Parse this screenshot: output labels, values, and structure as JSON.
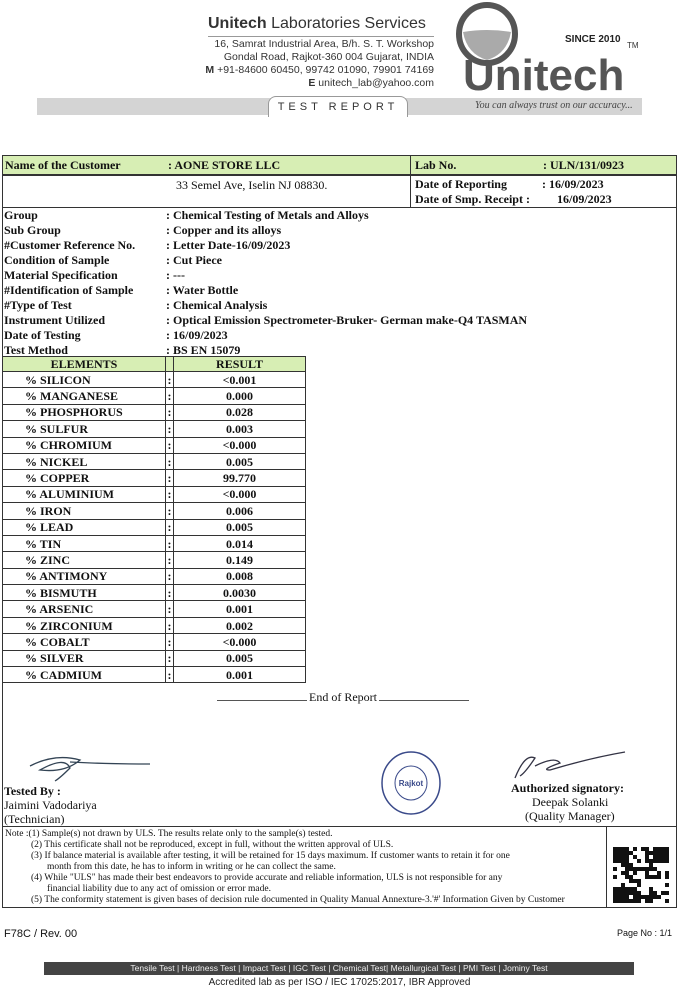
{
  "letterhead": {
    "company_bold": "Unitech",
    "company_rest": "Laboratories Services",
    "address1": "16, Samrat Industrial Area, B/h. S. T. Workshop",
    "address2": "Gondal Road, Rajkot-360 004 Gujarat, INDIA",
    "mobile_label": "M",
    "mobile": "+91-84600 60450, 99742 01090, 79901 74169",
    "email_label": "E",
    "email": "unitech_lab@yahoo.com",
    "logo_text": "Unitech",
    "since": "SINCE 2010",
    "tm": "TM",
    "tagline": "You can always trust on our accuracy...",
    "report_title": "TEST REPORT"
  },
  "customer": {
    "label": "Name of the Customer",
    "name": ": AONE STORE LLC",
    "address": "33 Semel Ave, Iselin NJ 08830."
  },
  "lab": {
    "lab_no_label": "Lab No.",
    "lab_no": ": ULN/131/0923",
    "reporting_label": "Date of Reporting",
    "reporting": ":  16/09/2023",
    "receipt_label": "Date of Smp. Receipt :",
    "receipt": "16/09/2023"
  },
  "info": [
    {
      "label": "Group",
      "value": ": Chemical Testing of Metals and Alloys"
    },
    {
      "label": "Sub Group",
      "value": ": Copper and its alloys"
    },
    {
      "label": "#Customer Reference No.",
      "value": ":  Letter Date-16/09/2023"
    },
    {
      "label": "Condition of Sample",
      "value": ": Cut Piece"
    },
    {
      "label": "Material Specification",
      "value": ": ---"
    },
    {
      "label": "#Identification of Sample",
      "value": ": Water Bottle"
    },
    {
      "label": "#Type of Test",
      "value": ": Chemical Analysis"
    },
    {
      "label": "Instrument Utilized",
      "value": ": Optical Emission Spectrometer-Bruker- German make-Q4 TASMAN"
    },
    {
      "label": "Date of Testing",
      "value": ": 16/09/2023"
    },
    {
      "label": "Test Method",
      "value": ": BS EN 15079"
    }
  ],
  "results": {
    "headers": [
      "ELEMENTS",
      "RESULT"
    ],
    "rows": [
      [
        "% SILICON",
        "<0.001"
      ],
      [
        "% MANGANESE",
        "0.000"
      ],
      [
        "% PHOSPHORUS",
        "0.028"
      ],
      [
        "% SULFUR",
        "0.003"
      ],
      [
        "% CHROMIUM",
        "<0.000"
      ],
      [
        "% NICKEL",
        "0.005"
      ],
      [
        "% COPPER",
        "99.770"
      ],
      [
        "% ALUMINIUM",
        "<0.000"
      ],
      [
        "% IRON",
        "0.006"
      ],
      [
        "% LEAD",
        "0.005"
      ],
      [
        "% TIN",
        "0.014"
      ],
      [
        "% ZINC",
        "0.149"
      ],
      [
        "% ANTIMONY",
        "0.008"
      ],
      [
        "% BISMUTH",
        "0.0030"
      ],
      [
        "% ARSENIC",
        "0.001"
      ],
      [
        "% ZIRCONIUM",
        "0.002"
      ],
      [
        "% COBALT",
        "<0.000"
      ],
      [
        "% SILVER",
        "0.005"
      ],
      [
        "% CADMIUM",
        "0.001"
      ]
    ]
  },
  "end_of_report": "End of Report",
  "tested_by": {
    "label": "Tested By :",
    "name": "Jaimini Vadodariya",
    "role": "(Technician)"
  },
  "stamp": {
    "ring": "Unitech Laboratories Services",
    "center": "Rajkot"
  },
  "signatory": {
    "label": "Authorized signatory:",
    "name": "Deepak Solanki",
    "role": "(Quality Manager)"
  },
  "notes": [
    "Note :(1)  Sample(s) not drawn by ULS. The results relate only to the sample(s) tested.",
    "(2)  This certificate shall not be reproduced, except in full, without the written approval of ULS.",
    "(3)  If balance material is available after testing, it will be retained for 15 days maximum. If customer wants to retain it for one",
    "month from this date, he has to inform in writing or he can collect the same.",
    "(4)  While \"ULS\" has made their best endeavors to provide accurate and reliable information, ULS is not responsible for any",
    "financial liability due to any act of omission or error made.",
    "(5)  The conformity statement is given bases of decision rule documented in Quality Manual Annexture-3.'#' Information Given by Customer"
  ],
  "footer": {
    "form": "F78C / Rev. 00",
    "page": "Page No : 1/1",
    "services": "Tensile Test | Hardness Test | Impact Test | IGC Test | Chemical Test| Metallurgical Test | PMI Test | Jominy Test",
    "accreditation": "Accredited lab as per ISO / IEC 17025:2017, IBR Approved"
  }
}
